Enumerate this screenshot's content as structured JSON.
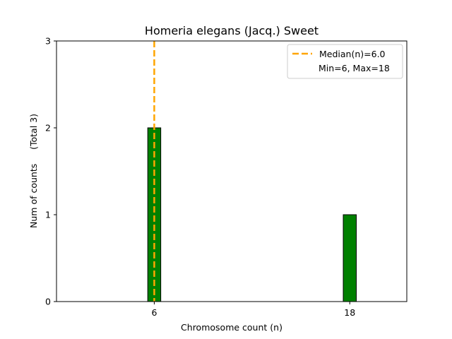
{
  "chart_data": {
    "type": "bar",
    "title": "Homeria elegans (Jacq.) Sweet",
    "xlabel": "Chromosome count (n)",
    "ylabel": "Num of counts     (Total 3)",
    "categories": [
      "6",
      "18"
    ],
    "x": [
      6,
      18
    ],
    "values": [
      2,
      1
    ],
    "xlim": [
      0,
      21.5
    ],
    "ylim": [
      0,
      3
    ],
    "yticks": [
      "0",
      "1",
      "2",
      "3"
    ],
    "xticks": [
      "6",
      "18"
    ],
    "bar_color": "#008000",
    "bar_edge_color": "#000000",
    "median": {
      "value": 6.0,
      "label": "Median(n)=6.0",
      "color": "#FFA500",
      "style": "dashed"
    },
    "legend": {
      "placement": "upper right",
      "entries": [
        "Median(n)=6.0",
        "Min=6, Max=18"
      ]
    },
    "grid": false
  }
}
